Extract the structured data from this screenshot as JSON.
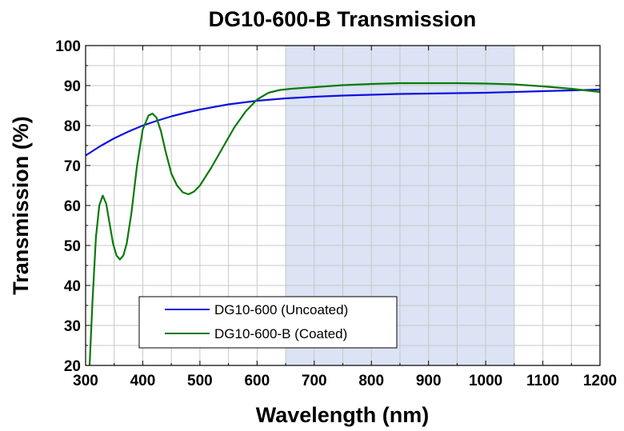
{
  "chart_data": {
    "type": "line",
    "title": "DG10-600-B Transmission",
    "xlabel": "Wavelength (nm)",
    "ylabel": "Transmission (%)",
    "xlim": [
      300,
      1200
    ],
    "ylim": [
      20,
      100
    ],
    "xticks": [
      300,
      400,
      500,
      600,
      700,
      800,
      900,
      1000,
      1100,
      1200
    ],
    "yticks": [
      20,
      30,
      40,
      50,
      60,
      70,
      80,
      90,
      100
    ],
    "x_minor_step": 50,
    "y_minor_step": 5,
    "grid": true,
    "highlight_band": {
      "x_range": [
        650,
        1050
      ],
      "color": "#dbe3f4"
    },
    "legend_position": "bottom-left",
    "series": [
      {
        "name": "DG10-600 (Uncoated)",
        "color": "#1010e0",
        "x": [
          300,
          325,
          350,
          375,
          400,
          425,
          450,
          475,
          500,
          550,
          600,
          650,
          700,
          750,
          800,
          850,
          900,
          950,
          1000,
          1050,
          1100,
          1150,
          1200
        ],
        "y": [
          72.5,
          74.8,
          76.8,
          78.5,
          80.0,
          81.2,
          82.3,
          83.2,
          84.0,
          85.3,
          86.2,
          86.8,
          87.2,
          87.5,
          87.7,
          87.9,
          88.0,
          88.1,
          88.2,
          88.4,
          88.6,
          88.8,
          89.0
        ]
      },
      {
        "name": "DG10-600-B (Coated)",
        "color": "#0a7a0a",
        "x": [
          307,
          312,
          318,
          324,
          330,
          336,
          342,
          348,
          354,
          360,
          366,
          372,
          380,
          390,
          400,
          410,
          417,
          424,
          432,
          440,
          450,
          460,
          470,
          480,
          490,
          500,
          520,
          540,
          560,
          580,
          600,
          620,
          640,
          660,
          700,
          750,
          800,
          850,
          900,
          950,
          1000,
          1050,
          1100,
          1150,
          1200
        ],
        "y": [
          20,
          36,
          52,
          60,
          62.5,
          60.5,
          55.5,
          50.5,
          47.5,
          46.5,
          47.5,
          50.5,
          58,
          70,
          79,
          82.5,
          83,
          82,
          78.5,
          73.5,
          68,
          65,
          63.3,
          62.8,
          63.5,
          65,
          69.5,
          74.5,
          79.5,
          83.5,
          86.5,
          88.2,
          88.9,
          89.2,
          89.6,
          90.1,
          90.4,
          90.6,
          90.6,
          90.6,
          90.5,
          90.3,
          89.8,
          89.2,
          88.4
        ]
      }
    ]
  }
}
